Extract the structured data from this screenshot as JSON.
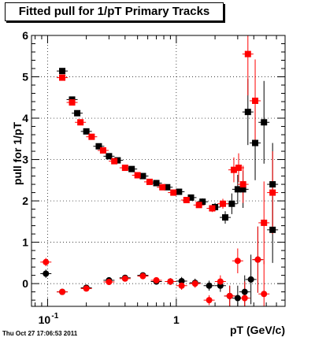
{
  "title": "Fitted pull for 1/pT  Primary Tracks",
  "xlabel": "pT (GeV/c)",
  "ylabel": "pull for 1/pT",
  "datestamp": "Thu Oct 27 17:06:53 2011",
  "colors": {
    "series_black": "#000000",
    "series_red": "#ff0000"
  },
  "chart_data": {
    "type": "scatter",
    "title": "Fitted pull for 1/pT  Primary Tracks",
    "xlabel": "pT (GeV/c)",
    "ylabel": "pull for 1/pT",
    "xscale": "log",
    "xlim": [
      0.075,
      7.0
    ],
    "ylim": [
      -0.55,
      6.0
    ],
    "grid": true,
    "x_ticks": [
      {
        "value": 0.1,
        "label": "10",
        "exp": "-1"
      },
      {
        "value": 1,
        "label": "1",
        "exp": ""
      }
    ],
    "y_ticks": [
      0,
      1,
      2,
      3,
      4,
      5,
      6
    ],
    "series": [
      {
        "color": "#000000",
        "points": [
          {
            "x": 0.097,
            "y": 0.24,
            "ey": 0.1
          },
          {
            "x": 0.13,
            "y": 5.14,
            "ey": 0.05
          },
          {
            "x": 0.155,
            "y": 4.45,
            "ey": 0.04
          },
          {
            "x": 0.17,
            "y": 4.12,
            "ey": 0.04
          },
          {
            "x": 0.2,
            "y": 3.68,
            "ey": 0.03
          },
          {
            "x": 0.25,
            "y": 3.32,
            "ey": 0.03
          },
          {
            "x": 0.3,
            "y": 3.08,
            "ey": 0.03
          },
          {
            "x": 0.35,
            "y": 2.98,
            "ey": 0.03
          },
          {
            "x": 0.45,
            "y": 2.77,
            "ey": 0.03
          },
          {
            "x": 0.55,
            "y": 2.6,
            "ey": 0.03
          },
          {
            "x": 0.7,
            "y": 2.43,
            "ey": 0.04
          },
          {
            "x": 0.85,
            "y": 2.33,
            "ey": 0.05
          },
          {
            "x": 1.05,
            "y": 2.22,
            "ey": 0.05
          },
          {
            "x": 1.3,
            "y": 2.08,
            "ey": 0.06
          },
          {
            "x": 1.6,
            "y": 1.98,
            "ey": 0.08
          },
          {
            "x": 2.0,
            "y": 1.85,
            "ey": 0.1
          },
          {
            "x": 2.4,
            "y": 1.6,
            "ey": 0.15
          },
          {
            "x": 2.7,
            "y": 1.93,
            "ey": 0.25
          },
          {
            "x": 3.0,
            "y": 2.28,
            "ey": 0.35
          },
          {
            "x": 3.3,
            "y": 2.28,
            "ey": 0.45
          },
          {
            "x": 3.6,
            "y": 4.15,
            "ey": 0.8
          },
          {
            "x": 4.1,
            "y": 3.4,
            "ey": 0.9
          },
          {
            "x": 4.8,
            "y": 3.9,
            "ey": 1.0
          },
          {
            "x": 5.6,
            "y": 2.4,
            "ey": 1.0
          },
          {
            "x": 0.13,
            "y": -0.2,
            "ey": 0.05
          },
          {
            "x": 0.2,
            "y": -0.1,
            "ey": 0.05
          },
          {
            "x": 0.3,
            "y": 0.08,
            "ey": 0.05
          },
          {
            "x": 0.4,
            "y": 0.14,
            "ey": 0.05
          },
          {
            "x": 0.55,
            "y": 0.2,
            "ey": 0.06
          },
          {
            "x": 0.7,
            "y": 0.05,
            "ey": 0.07
          },
          {
            "x": 0.9,
            "y": 0.05,
            "ey": 0.08
          },
          {
            "x": 1.1,
            "y": 0.06,
            "ey": 0.1
          },
          {
            "x": 1.4,
            "y": 0.02,
            "ey": 0.1
          },
          {
            "x": 1.8,
            "y": -0.05,
            "ey": 0.12
          },
          {
            "x": 2.2,
            "y": -0.05,
            "ey": 0.15
          },
          {
            "x": 2.6,
            "y": -0.3,
            "ey": 0.25
          },
          {
            "x": 3.0,
            "y": -0.35,
            "ey": 0.3
          },
          {
            "x": 3.4,
            "y": -0.2,
            "ey": 0.4
          },
          {
            "x": 3.8,
            "y": 0.1,
            "ey": 0.6
          },
          {
            "x": 4.3,
            "y": 0.58,
            "ey": 0.8
          },
          {
            "x": 5.6,
            "y": 1.3,
            "ey": 0.8
          }
        ]
      },
      {
        "color": "#ff0000",
        "points": [
          {
            "x": 0.097,
            "y": 0.52,
            "ey": 0.1
          },
          {
            "x": 0.13,
            "y": 4.98,
            "ey": 0.05
          },
          {
            "x": 0.155,
            "y": 4.38,
            "ey": 0.04
          },
          {
            "x": 0.18,
            "y": 3.9,
            "ey": 0.04
          },
          {
            "x": 0.22,
            "y": 3.55,
            "ey": 0.03
          },
          {
            "x": 0.27,
            "y": 3.22,
            "ey": 0.03
          },
          {
            "x": 0.33,
            "y": 2.96,
            "ey": 0.03
          },
          {
            "x": 0.4,
            "y": 2.8,
            "ey": 0.03
          },
          {
            "x": 0.5,
            "y": 2.62,
            "ey": 0.03
          },
          {
            "x": 0.62,
            "y": 2.46,
            "ey": 0.04
          },
          {
            "x": 0.78,
            "y": 2.33,
            "ey": 0.04
          },
          {
            "x": 0.95,
            "y": 2.2,
            "ey": 0.05
          },
          {
            "x": 1.2,
            "y": 2.02,
            "ey": 0.06
          },
          {
            "x": 1.5,
            "y": 1.9,
            "ey": 0.07
          },
          {
            "x": 1.9,
            "y": 1.82,
            "ey": 0.09
          },
          {
            "x": 2.3,
            "y": 1.93,
            "ey": 0.12
          },
          {
            "x": 2.8,
            "y": 2.75,
            "ey": 0.3
          },
          {
            "x": 3.05,
            "y": 2.8,
            "ey": 0.35
          },
          {
            "x": 3.3,
            "y": 2.4,
            "ey": 0.45
          },
          {
            "x": 3.6,
            "y": 5.55,
            "ey": 1.0
          },
          {
            "x": 4.1,
            "y": 4.42,
            "ey": 1.0
          },
          {
            "x": 4.8,
            "y": 1.47,
            "ey": 1.0
          },
          {
            "x": 5.6,
            "y": 2.2,
            "ey": 1.0
          },
          {
            "x": 0.13,
            "y": -0.2,
            "ey": 0.05
          },
          {
            "x": 0.2,
            "y": -0.12,
            "ey": 0.05
          },
          {
            "x": 0.3,
            "y": 0.04,
            "ey": 0.05
          },
          {
            "x": 0.4,
            "y": 0.12,
            "ey": 0.05
          },
          {
            "x": 0.55,
            "y": 0.18,
            "ey": 0.06
          },
          {
            "x": 0.7,
            "y": 0.08,
            "ey": 0.07
          },
          {
            "x": 0.9,
            "y": 0.05,
            "ey": 0.08
          },
          {
            "x": 1.1,
            "y": -0.05,
            "ey": 0.1
          },
          {
            "x": 1.4,
            "y": 0.0,
            "ey": 0.1
          },
          {
            "x": 1.8,
            "y": -0.4,
            "ey": 0.12
          },
          {
            "x": 2.2,
            "y": 0.05,
            "ey": 0.15
          },
          {
            "x": 2.6,
            "y": -0.3,
            "ey": 0.25
          },
          {
            "x": 3.0,
            "y": 0.55,
            "ey": 0.3
          },
          {
            "x": 3.4,
            "y": -0.35,
            "ey": 0.4
          },
          {
            "x": 4.3,
            "y": 0.58,
            "ey": 0.8
          },
          {
            "x": 4.8,
            "y": -0.25,
            "ey": 0.8
          }
        ]
      }
    ]
  }
}
